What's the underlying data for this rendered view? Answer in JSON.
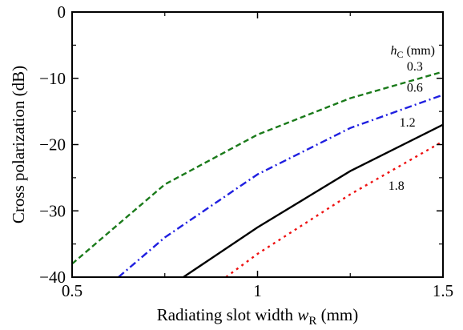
{
  "chart_data": {
    "type": "line",
    "xlabel": "Radiating slot width",
    "xlabel_symbol": "w",
    "xlabel_subscript": "R",
    "xlabel_unit": " (mm)",
    "ylabel": "Cross polarization (dB)",
    "xlim": [
      0.5,
      1.5
    ],
    "ylim": [
      -40,
      0
    ],
    "xticks": [
      0.5,
      1,
      1.5
    ],
    "xtick_labels": [
      "0.5",
      "1",
      "1.5"
    ],
    "yticks": [
      0,
      -10,
      -20,
      -30,
      -40
    ],
    "ytick_labels": [
      "0",
      "−10",
      "−20",
      "−30",
      "−40"
    ],
    "grid": false,
    "legend_title_symbol": "h",
    "legend_title_subscript": "C",
    "legend_title_unit": " (mm)",
    "series": [
      {
        "name": "0.3",
        "color": "#1a7a1a",
        "dash": "dashed",
        "x": [
          0.5,
          0.75,
          1.0,
          1.25,
          1.5
        ],
        "y": [
          -38,
          -26,
          -18.5,
          -13,
          -9
        ]
      },
      {
        "name": "0.6",
        "color": "#1f1fe0",
        "dash": "dashdot",
        "x": [
          0.625,
          0.75,
          1.0,
          1.25,
          1.5
        ],
        "y": [
          -40,
          -34,
          -24.5,
          -17.5,
          -12.5
        ]
      },
      {
        "name": "1.2",
        "color": "#000000",
        "dash": "solid",
        "x": [
          0.8,
          1.0,
          1.25,
          1.5
        ],
        "y": [
          -40,
          -32.5,
          -24,
          -17
        ]
      },
      {
        "name": "1.8",
        "color": "#ee1111",
        "dash": "dotted",
        "x": [
          0.915,
          1.0,
          1.25,
          1.5
        ],
        "y": [
          -40,
          -36.5,
          -27.5,
          -19.5
        ]
      }
    ]
  }
}
